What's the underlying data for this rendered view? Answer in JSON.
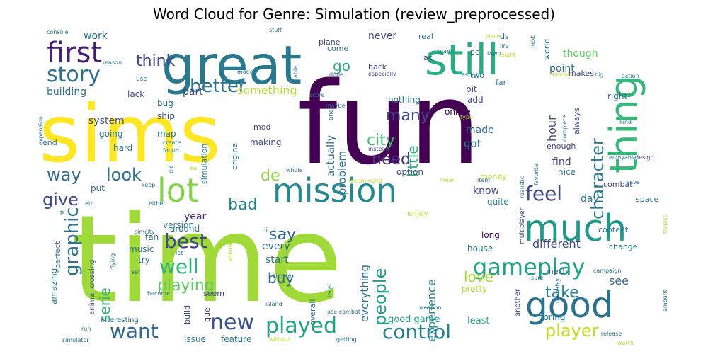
{
  "chart_data": {
    "type": "wordcloud",
    "title": "Word Cloud for Genre: Simulation (review_preprocessed)",
    "words": [
      {
        "text": "time",
        "size": 170,
        "color": "#a0da39"
      },
      {
        "text": "fun",
        "size": 160,
        "color": "#440154"
      },
      {
        "text": "sims",
        "size": 112,
        "color": "#fde725"
      },
      {
        "text": "great",
        "size": 75,
        "color": "#2a788e"
      },
      {
        "text": "still",
        "size": 60,
        "color": "#27ad81"
      },
      {
        "text": "thing",
        "size": 54,
        "color": "#35b779"
      },
      {
        "text": "much",
        "size": 52,
        "color": "#1f9a8a"
      },
      {
        "text": "good",
        "size": 50,
        "color": "#2c728e"
      },
      {
        "text": "mission",
        "size": 46,
        "color": "#23898e"
      },
      {
        "text": "lot",
        "size": 46,
        "color": "#84d44b"
      },
      {
        "text": "first",
        "size": 40,
        "color": "#482173"
      },
      {
        "text": "gameplay",
        "size": 32,
        "color": "#20a386"
      },
      {
        "text": "story",
        "size": 30,
        "color": "#2d708e"
      },
      {
        "text": "new",
        "size": 30,
        "color": "#3b528b"
      },
      {
        "text": "played",
        "size": 30,
        "color": "#20a386"
      },
      {
        "text": "want",
        "size": 28,
        "color": "#31688e"
      },
      {
        "text": "feel",
        "size": 28,
        "color": "#3e4a89"
      },
      {
        "text": "best",
        "size": 28,
        "color": "#3e4a89"
      },
      {
        "text": "well",
        "size": 28,
        "color": "#2fb47c"
      },
      {
        "text": "control",
        "size": 28,
        "color": "#26828e"
      },
      {
        "text": "graphic",
        "size": 26,
        "color": "#2c738e"
      },
      {
        "text": "better",
        "size": 26,
        "color": "#2c738e"
      },
      {
        "text": "character",
        "size": 24,
        "color": "#2a788e"
      },
      {
        "text": "player",
        "size": 24,
        "color": "#bddf26"
      },
      {
        "text": "people",
        "size": 24,
        "color": "#1f9e89"
      },
      {
        "text": "way",
        "size": 24,
        "color": "#31688e"
      },
      {
        "text": "look",
        "size": 24,
        "color": "#2d708e"
      },
      {
        "text": "give",
        "size": 24,
        "color": "#3e4a89"
      },
      {
        "text": "need",
        "size": 22,
        "color": "#46327e"
      },
      {
        "text": "think",
        "size": 22,
        "color": "#3e4a89"
      },
      {
        "text": "playing",
        "size": 22,
        "color": "#5ec962"
      },
      {
        "text": "take",
        "size": 22,
        "color": "#25848e"
      },
      {
        "text": "say",
        "size": 22,
        "color": "#31688e"
      },
      {
        "text": "bad",
        "size": 22,
        "color": "#26828e"
      },
      {
        "text": "city",
        "size": 22,
        "color": "#42be71"
      },
      {
        "text": "many",
        "size": 22,
        "color": "#3e4a89"
      },
      {
        "text": "de",
        "size": 22,
        "color": "#8fd744"
      },
      {
        "text": "buy",
        "size": 20,
        "color": "#31688e"
      },
      {
        "text": "serie",
        "size": 20,
        "color": "#2fb47c"
      },
      {
        "text": "love",
        "size": 20,
        "color": "#a8db34"
      },
      {
        "text": "little",
        "size": 20,
        "color": "#2fb47c"
      },
      {
        "text": "go",
        "size": 20,
        "color": "#2fb47c"
      },
      {
        "text": "experience",
        "size": 16,
        "color": "#25848e"
      },
      {
        "text": "something",
        "size": 16,
        "color": "#b5de2b"
      },
      {
        "text": "hour",
        "size": 16,
        "color": "#414487"
      },
      {
        "text": "different",
        "size": 16,
        "color": "#3e4a89"
      },
      {
        "text": "see",
        "size": 16,
        "color": "#31688e"
      },
      {
        "text": "everything",
        "size": 15,
        "color": "#2c728e"
      },
      {
        "text": "problem",
        "size": 15,
        "color": "#2c738e"
      },
      {
        "text": "actually",
        "size": 15,
        "color": "#31688e"
      },
      {
        "text": "though",
        "size": 14,
        "color": "#5ec962"
      },
      {
        "text": "point",
        "size": 14,
        "color": "#2c728e"
      },
      {
        "text": "building",
        "size": 14,
        "color": "#2c738e"
      },
      {
        "text": "system",
        "size": 14,
        "color": "#3e4a89"
      },
      {
        "text": "got",
        "size": 15,
        "color": "#26828e"
      },
      {
        "text": "made",
        "size": 14,
        "color": "#31688e"
      },
      {
        "text": "find",
        "size": 14,
        "color": "#3e4a89"
      },
      {
        "text": "start",
        "size": 14,
        "color": "#2a788e"
      },
      {
        "text": "every",
        "size": 14,
        "color": "#31688e"
      },
      {
        "text": "year",
        "size": 14,
        "color": "#482878"
      },
      {
        "text": "work",
        "size": 14,
        "color": "#2c728e"
      },
      {
        "text": "never",
        "size": 14,
        "color": "#3e4a89"
      },
      {
        "text": "part",
        "size": 14,
        "color": "#3e4a89"
      },
      {
        "text": "know",
        "size": 14,
        "color": "#3e4a89"
      },
      {
        "text": "day",
        "size": 14,
        "color": "#2a788e"
      },
      {
        "text": "good game",
        "size": 13,
        "color": "#20a386"
      },
      {
        "text": "least",
        "size": 13,
        "color": "#27ad81"
      },
      {
        "text": "house",
        "size": 12,
        "color": "#2a788e"
      },
      {
        "text": "boring",
        "size": 12,
        "color": "#26828e"
      },
      {
        "text": "feature",
        "size": 12,
        "color": "#2a788e"
      },
      {
        "text": "issue",
        "size": 12,
        "color": "#2a788e"
      },
      {
        "text": "amazing",
        "size": 12,
        "color": "#2c738e"
      },
      {
        "text": "perfect",
        "size": 11,
        "color": "#2c728e"
      },
      {
        "text": "pretty",
        "size": 12,
        "color": "#b5de2b"
      },
      {
        "text": "enjoy",
        "size": 11,
        "color": "#b5de2b"
      },
      {
        "text": "nothing",
        "size": 12,
        "color": "#2c728e"
      },
      {
        "text": "online",
        "size": 12,
        "color": "#440154"
      },
      {
        "text": "bit",
        "size": 12,
        "color": "#414487"
      },
      {
        "text": "add",
        "size": 12,
        "color": "#3e4a89"
      },
      {
        "text": "bug",
        "size": 12,
        "color": "#2a788e"
      },
      {
        "text": "lack",
        "size": 12,
        "color": "#3e4a89"
      },
      {
        "text": "ship",
        "size": 12,
        "color": "#3e4a89"
      },
      {
        "text": "map",
        "size": 12,
        "color": "#2a788e"
      },
      {
        "text": "hard",
        "size": 12,
        "color": "#2c728e"
      },
      {
        "text": "end",
        "size": 11,
        "color": "#2c728e"
      },
      {
        "text": "going",
        "size": 12,
        "color": "#2a788e"
      },
      {
        "text": "making",
        "size": 12,
        "color": "#3e4a89"
      },
      {
        "text": "mod",
        "size": 11,
        "color": "#3e4a89"
      },
      {
        "text": "original",
        "size": 11,
        "color": "#2c728e"
      },
      {
        "text": "simulation",
        "size": 11,
        "color": "#26828e"
      },
      {
        "text": "version",
        "size": 12,
        "color": "#2c728e"
      },
      {
        "text": "around",
        "size": 12,
        "color": "#2c728e"
      },
      {
        "text": "fan",
        "size": 12,
        "color": "#31688e"
      },
      {
        "text": "music",
        "size": 12,
        "color": "#2c728e"
      },
      {
        "text": "try",
        "size": 12,
        "color": "#2c728e"
      },
      {
        "text": "put",
        "size": 12,
        "color": "#31688e"
      },
      {
        "text": "quite",
        "size": 12,
        "color": "#26828e"
      },
      {
        "text": "option",
        "size": 12,
        "color": "#3e4a89"
      },
      {
        "text": "long",
        "size": 12,
        "color": "#440154"
      },
      {
        "text": "money",
        "size": 11,
        "color": "#b5de2b"
      },
      {
        "text": "nice",
        "size": 12,
        "color": "#2a788e"
      },
      {
        "text": "content",
        "size": 11,
        "color": "#2c728e"
      },
      {
        "text": "change",
        "size": 11,
        "color": "#26828e"
      },
      {
        "text": "space",
        "size": 11,
        "color": "#2c728e"
      },
      {
        "text": "combat",
        "size": 11,
        "color": "#3e4a89"
      },
      {
        "text": "enough",
        "size": 11,
        "color": "#3e4a89"
      },
      {
        "text": "always",
        "size": 11,
        "color": "#3e4a89"
      },
      {
        "text": "right",
        "size": 12,
        "color": "#2c728e"
      },
      {
        "text": "makes",
        "size": 11,
        "color": "#3e4a89"
      },
      {
        "text": "world",
        "size": 11,
        "color": "#2c728e"
      },
      {
        "text": "plane",
        "size": 11,
        "color": "#3e4a89"
      },
      {
        "text": "come",
        "size": 11,
        "color": "#2c728e"
      },
      {
        "text": "real",
        "size": 11,
        "color": "#2c728e"
      },
      {
        "text": "back",
        "size": 11,
        "color": "#3e4a89"
      },
      {
        "text": "ac",
        "size": 11,
        "color": "#3e4a89"
      },
      {
        "text": "pc",
        "size": 11,
        "color": "#31688e"
      },
      {
        "text": "ds",
        "size": 11,
        "color": "#2c728e"
      },
      {
        "text": "two",
        "size": 11,
        "color": "#2c728e"
      },
      {
        "text": "far",
        "size": 11,
        "color": "#2c728e"
      },
      {
        "text": "mech",
        "size": 11,
        "color": "#3e4a89"
      },
      {
        "text": "build",
        "size": 11,
        "color": "#3e4a89"
      },
      {
        "text": "que",
        "size": 11,
        "color": "#3e4a89"
      },
      {
        "text": "seem",
        "size": 11,
        "color": "#3e4a89"
      },
      {
        "text": "overall",
        "size": 11,
        "color": "#2c728e"
      },
      {
        "text": "another",
        "size": 10,
        "color": "#3e4a89"
      },
      {
        "text": "interesting",
        "size": 10,
        "color": "#2c728e"
      },
      {
        "text": "animal crossing",
        "size": 10,
        "color": "#3e4a89"
      },
      {
        "text": "multiplayer",
        "size": 9,
        "color": "#3e4a89"
      },
      {
        "text": "use",
        "size": 9,
        "color": "#2c728e"
      },
      {
        "text": "console",
        "size": 8,
        "color": "#2c728e"
      },
      {
        "text": "reason",
        "size": 8,
        "color": "#2c728e"
      },
      {
        "text": "stuff",
        "size": 8,
        "color": "#2c728e"
      },
      {
        "text": "able",
        "size": 8,
        "color": "#2c728e"
      },
      {
        "text": "mode",
        "size": 8,
        "color": "#2c728e"
      },
      {
        "text": "especially",
        "size": 8,
        "color": "#3e4a89"
      },
      {
        "text": "done",
        "size": 8,
        "color": "#3e4a89"
      },
      {
        "text": "score",
        "size": 8,
        "color": "#2c728e"
      },
      {
        "text": "maybe",
        "size": 8,
        "color": "#2c728e"
      },
      {
        "text": "title",
        "size": 8,
        "color": "#2c728e"
      },
      {
        "text": "instead",
        "size": 8,
        "color": "#3e4a89"
      },
      {
        "text": "place",
        "size": 8,
        "color": "#b5de2b"
      },
      {
        "text": "life",
        "size": 8,
        "color": "#2c728e"
      },
      {
        "text": "town",
        "size": 8,
        "color": "#2c728e"
      },
      {
        "text": "team",
        "size": 8,
        "color": "#2c728e"
      },
      {
        "text": "might",
        "size": 8,
        "color": "#b5de2b"
      },
      {
        "text": "next",
        "size": 8,
        "color": "#2c728e"
      },
      {
        "text": "aspect",
        "size": 8,
        "color": "#2c728e"
      },
      {
        "text": "almost",
        "size": 8,
        "color": "#b5de2b"
      },
      {
        "text": "big",
        "size": 8,
        "color": "#2c728e"
      },
      {
        "text": "action",
        "size": 8,
        "color": "#2c728e"
      },
      {
        "text": "design",
        "size": 8,
        "color": "#3e4a89"
      },
      {
        "text": "kind",
        "size": 8,
        "color": "#2c728e"
      },
      {
        "text": "enjoyable",
        "size": 8,
        "color": "#2c728e"
      },
      {
        "text": "complete",
        "size": 8,
        "color": "#2c728e"
      },
      {
        "text": "probably",
        "size": 8,
        "color": "#2c728e"
      },
      {
        "text": "save",
        "size": 8,
        "color": "#2c728e"
      },
      {
        "text": "favorite",
        "size": 8,
        "color": "#2c728e"
      },
      {
        "text": "realistic",
        "size": 8,
        "color": "#2c728e"
      },
      {
        "text": "item",
        "size": 8,
        "color": "#2c728e"
      },
      {
        "text": "mean",
        "size": 8,
        "color": "#b5de2b"
      },
      {
        "text": "recommend",
        "size": 8,
        "color": "#b5de2b"
      },
      {
        "text": "whole",
        "size": 8,
        "color": "#2c728e"
      },
      {
        "text": "ea",
        "size": 8,
        "color": "#b5de2b"
      },
      {
        "text": "dlc",
        "size": 8,
        "color": "#2c728e"
      },
      {
        "text": "create",
        "size": 8,
        "color": "#2c728e"
      },
      {
        "text": "found",
        "size": 8,
        "color": "#2c728e"
      },
      {
        "text": "type",
        "size": 8,
        "color": "#b5de2b"
      },
      {
        "text": "expansion",
        "size": 8,
        "color": "#2c728e"
      },
      {
        "text": "etc",
        "size": 8,
        "color": "#2c728e"
      },
      {
        "text": "keep",
        "size": 8,
        "color": "#2c728e"
      },
      {
        "text": "either",
        "size": 8,
        "color": "#2c728e"
      },
      {
        "text": "simcity",
        "size": 8,
        "color": "#2c728e"
      },
      {
        "text": "p",
        "size": 8,
        "color": "#2c728e"
      },
      {
        "text": "ii",
        "size": 9,
        "color": "#2c728e"
      },
      {
        "text": "i",
        "size": 9,
        "color": "#2c728e"
      },
      {
        "text": "x",
        "size": 8,
        "color": "#2c728e"
      },
      {
        "text": "let",
        "size": 8,
        "color": "#2c728e"
      },
      {
        "text": "although",
        "size": 8,
        "color": "#b5de2b"
      },
      {
        "text": "simple",
        "size": 8,
        "color": "#2c728e"
      },
      {
        "text": "set",
        "size": 8,
        "color": "#2c728e"
      },
      {
        "text": "become",
        "size": 8,
        "color": "#2c728e"
      },
      {
        "text": "island",
        "size": 8,
        "color": "#2c728e"
      },
      {
        "text": "flying",
        "size": 8,
        "color": "#2c728e"
      },
      {
        "text": "level",
        "size": 8,
        "color": "#2c728e"
      },
      {
        "text": "ace combat",
        "size": 8,
        "color": "#2c728e"
      },
      {
        "text": "weapon",
        "size": 8,
        "color": "#2c728e"
      },
      {
        "text": "run",
        "size": 8,
        "color": "#2c728e"
      },
      {
        "text": "simulator",
        "size": 8,
        "color": "#2c728e"
      },
      {
        "text": "without",
        "size": 8,
        "color": "#b5de2b"
      },
      {
        "text": "getting",
        "size": 8,
        "color": "#2c728e"
      },
      {
        "text": "sure",
        "size": 8,
        "color": "#2c728e"
      },
      {
        "text": "campaign",
        "size": 8,
        "color": "#2c728e"
      },
      {
        "text": "release",
        "size": 8,
        "color": "#2c728e"
      },
      {
        "text": "worth",
        "size": 8,
        "color": "#b5de2b"
      },
      {
        "text": "amount",
        "size": 8,
        "color": "#2c728e"
      },
      {
        "text": "tropico",
        "size": 8,
        "color": "#b5de2b"
      }
    ]
  }
}
